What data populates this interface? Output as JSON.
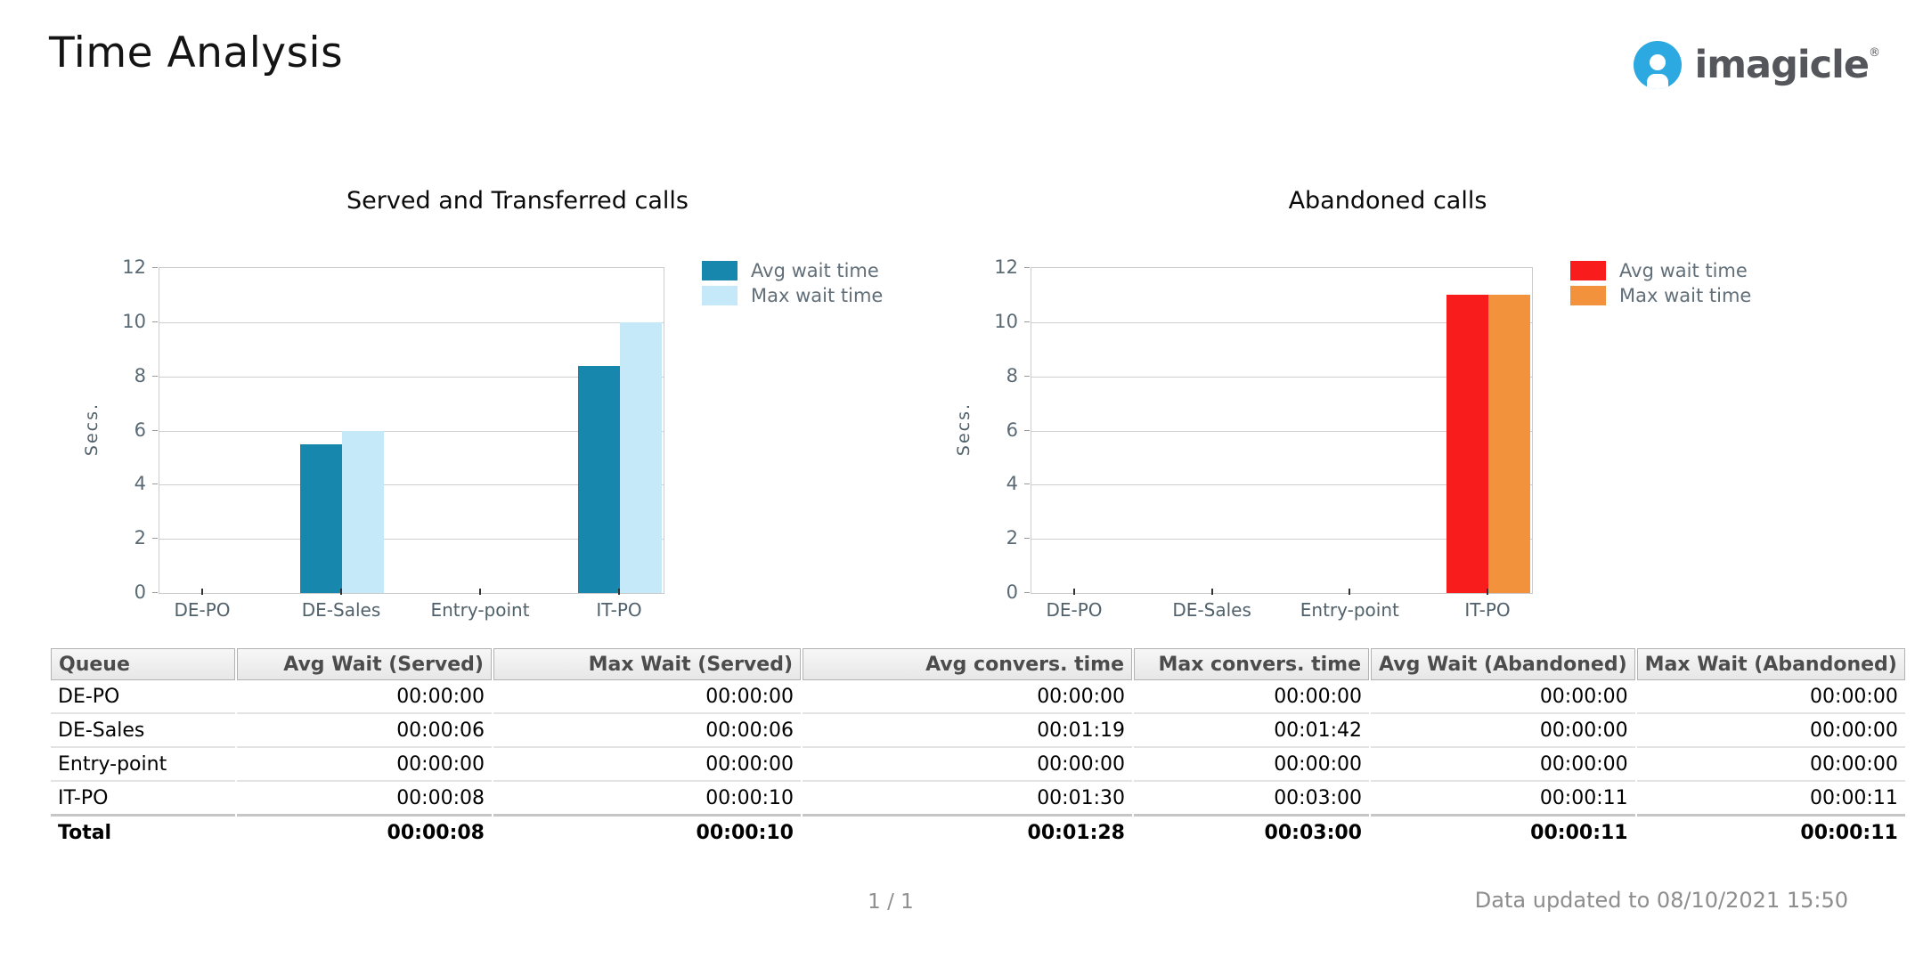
{
  "page": {
    "title": "Time Analysis",
    "page_indicator": "1 / 1",
    "data_updated": "Data updated to 08/10/2021 15:50"
  },
  "logo": {
    "brand": "imagicle",
    "registered": "®",
    "mark_color": "#2ba9e0",
    "text_color": "#55565b"
  },
  "chart_data": [
    {
      "type": "bar",
      "title": "Served and Transferred calls",
      "ylabel": "Secs.",
      "categories": [
        "DE-PO",
        "DE-Sales",
        "Entry-point",
        "IT-PO"
      ],
      "series": [
        {
          "name": "Avg wait time",
          "color": "#1787ad",
          "values": [
            0,
            5.5,
            0,
            8.4
          ]
        },
        {
          "name": "Max wait time",
          "color": "#c5e9f9",
          "values": [
            0,
            6,
            0,
            10
          ]
        }
      ],
      "ylim": [
        0,
        12
      ],
      "ytick_step": 2,
      "grid": true,
      "legend_position": "right"
    },
    {
      "type": "bar",
      "title": "Abandoned calls",
      "ylabel": "Secs.",
      "categories": [
        "DE-PO",
        "DE-Sales",
        "Entry-point",
        "IT-PO"
      ],
      "series": [
        {
          "name": "Avg wait time",
          "color": "#f91c1c",
          "values": [
            0,
            0,
            0,
            11
          ]
        },
        {
          "name": "Max wait time",
          "color": "#f2923c",
          "values": [
            0,
            0,
            0,
            11
          ]
        }
      ],
      "ylim": [
        0,
        12
      ],
      "ytick_step": 2,
      "grid": true,
      "legend_position": "right"
    }
  ],
  "table": {
    "columns": [
      {
        "label": "Queue",
        "align": "left"
      },
      {
        "label": "Avg Wait (Served)",
        "align": "right"
      },
      {
        "label": "Max Wait (Served)",
        "align": "right"
      },
      {
        "label": "Avg convers. time",
        "align": "right"
      },
      {
        "label": "Max convers. time",
        "align": "right"
      },
      {
        "label": "Avg Wait (Abandoned)",
        "align": "right"
      },
      {
        "label": "Max Wait (Abandoned)",
        "align": "right"
      }
    ],
    "rows": [
      [
        "DE-PO",
        "00:00:00",
        "00:00:00",
        "00:00:00",
        "00:00:00",
        "00:00:00",
        "00:00:00"
      ],
      [
        "DE-Sales",
        "00:00:06",
        "00:00:06",
        "00:01:19",
        "00:01:42",
        "00:00:00",
        "00:00:00"
      ],
      [
        "Entry-point",
        "00:00:00",
        "00:00:00",
        "00:00:00",
        "00:00:00",
        "00:00:00",
        "00:00:00"
      ],
      [
        "IT-PO",
        "00:00:08",
        "00:00:10",
        "00:01:30",
        "00:03:00",
        "00:00:11",
        "00:00:11"
      ]
    ],
    "total_row": [
      "Total",
      "00:00:08",
      "00:00:10",
      "00:01:28",
      "00:03:00",
      "00:00:11",
      "00:00:11"
    ]
  }
}
